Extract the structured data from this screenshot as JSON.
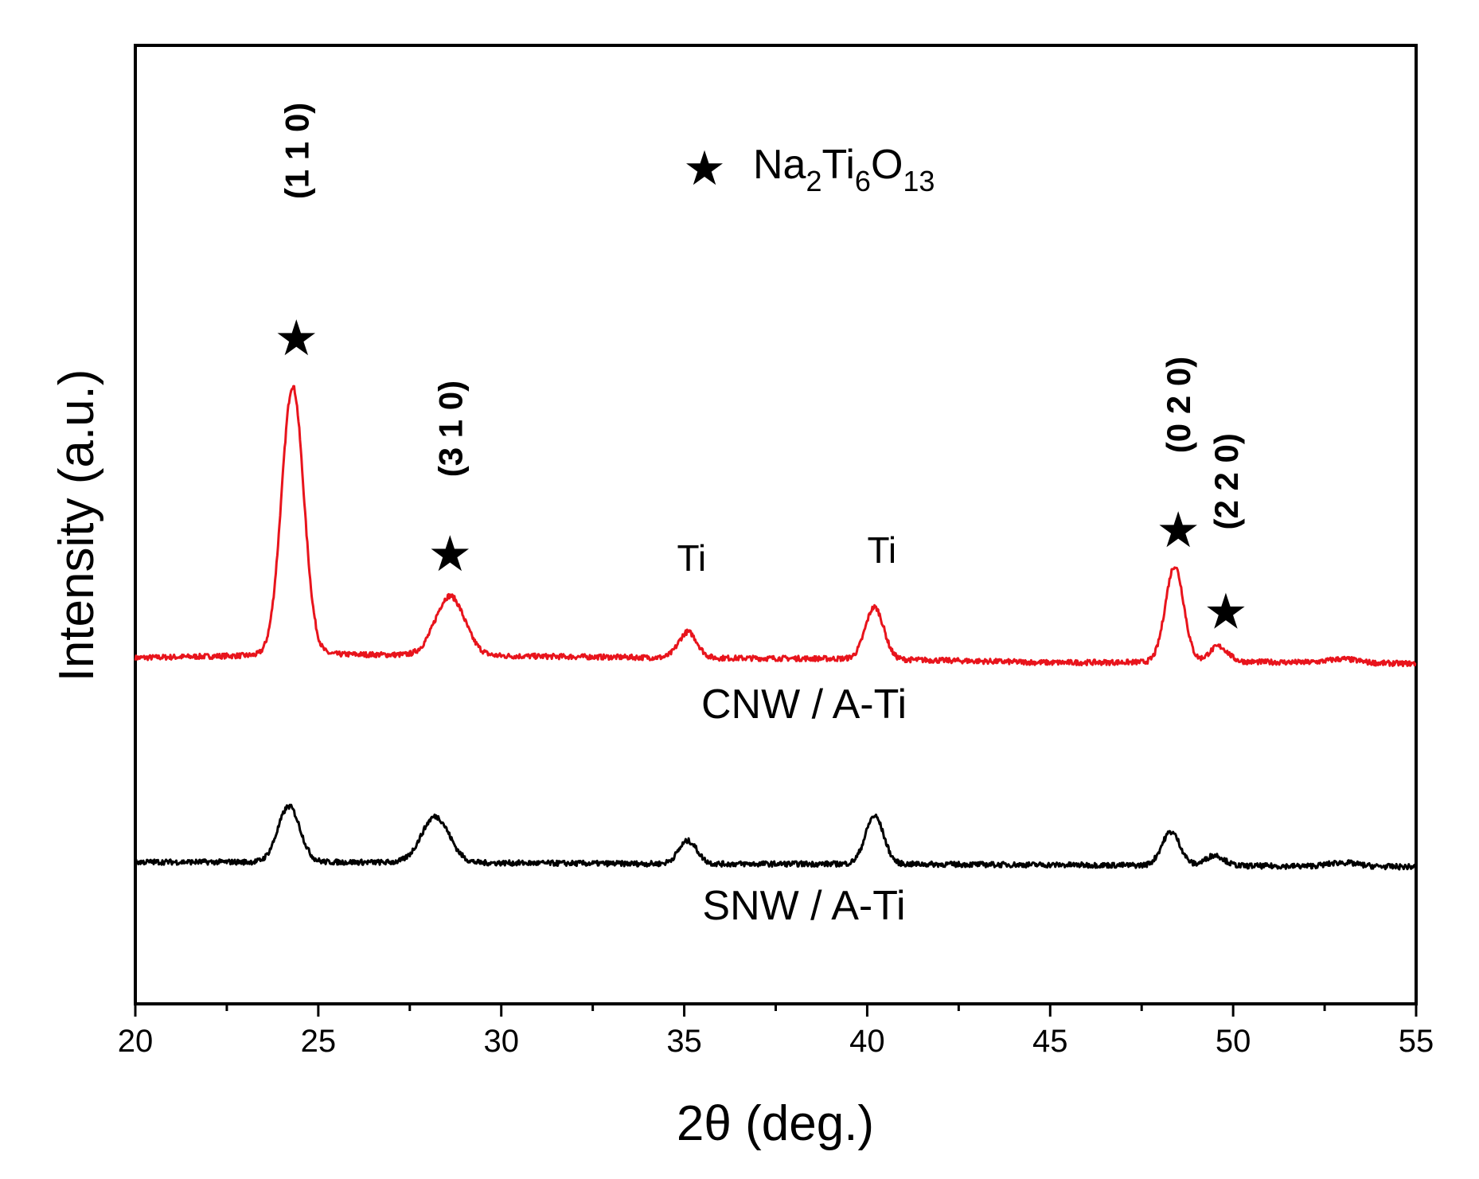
{
  "chart_data": {
    "type": "line",
    "xlabel": "2θ (deg.)",
    "ylabel": "Intensity (a.u.)",
    "xlim": [
      20,
      55
    ],
    "ylim": [
      0,
      10
    ],
    "x_ticks": [
      20,
      25,
      30,
      35,
      40,
      45,
      50,
      55
    ],
    "x_tick_labels": [
      "20",
      "25",
      "30",
      "35",
      "40",
      "45",
      "50",
      "55"
    ],
    "y_ticks_shown": false,
    "legend": {
      "symbol": "★",
      "formula": {
        "na": "Na",
        "na_sub": "2",
        "ti": "Ti",
        "ti_sub": "6",
        "o": "O",
        "o_sub": "13"
      },
      "placement": "top-center"
    },
    "series": [
      {
        "name": "CNW / A-Ti",
        "color": "#e8141c",
        "baseline": [
          [
            20,
            3.61
          ],
          [
            25,
            3.65
          ],
          [
            30,
            3.63
          ],
          [
            35,
            3.61
          ],
          [
            40,
            3.6
          ],
          [
            45,
            3.56
          ],
          [
            50,
            3.57
          ],
          [
            55,
            3.55
          ]
        ],
        "peaks": [
          {
            "x": 24.3,
            "height": 2.8,
            "width": 0.3
          },
          {
            "x": 28.6,
            "height": 0.62,
            "width": 0.4
          },
          {
            "x": 35.1,
            "height": 0.27,
            "width": 0.25
          },
          {
            "x": 40.2,
            "height": 0.54,
            "width": 0.25
          },
          {
            "x": 48.4,
            "height": 1.0,
            "width": 0.25
          },
          {
            "x": 49.6,
            "height": 0.16,
            "width": 0.25
          },
          {
            "x": 53.0,
            "height": 0.04,
            "width": 0.4
          }
        ]
      },
      {
        "name": "SNW / A-Ti",
        "color": "#000000",
        "baseline": [
          [
            20,
            1.48
          ],
          [
            25,
            1.48
          ],
          [
            30,
            1.47
          ],
          [
            35,
            1.46
          ],
          [
            40,
            1.46
          ],
          [
            45,
            1.45
          ],
          [
            50,
            1.44
          ],
          [
            55,
            1.43
          ]
        ],
        "peaks": [
          {
            "x": 24.2,
            "height": 0.58,
            "width": 0.3
          },
          {
            "x": 28.2,
            "height": 0.48,
            "width": 0.38
          },
          {
            "x": 35.1,
            "height": 0.24,
            "width": 0.25
          },
          {
            "x": 40.2,
            "height": 0.5,
            "width": 0.25
          },
          {
            "x": 48.3,
            "height": 0.35,
            "width": 0.25
          },
          {
            "x": 49.5,
            "height": 0.11,
            "width": 0.25
          },
          {
            "x": 53.0,
            "height": 0.04,
            "width": 0.4
          }
        ]
      }
    ],
    "annotations": [
      {
        "kind": "star",
        "x": 24.4,
        "y": 6.95
      },
      {
        "kind": "hkl",
        "text": "(1 1 0)",
        "x": 24.4,
        "y": 8.9
      },
      {
        "kind": "star",
        "x": 28.6,
        "y": 4.7
      },
      {
        "kind": "hkl",
        "text": "(3 1 0)",
        "x": 28.6,
        "y": 6.0
      },
      {
        "kind": "text",
        "text": "Ti",
        "x": 35.2,
        "y": 4.52
      },
      {
        "kind": "text",
        "text": "Ti",
        "x": 40.4,
        "y": 4.6
      },
      {
        "kind": "star",
        "x": 48.5,
        "y": 4.95
      },
      {
        "kind": "hkl",
        "text": "(0 2 0)",
        "x": 48.5,
        "y": 6.25
      },
      {
        "kind": "star",
        "x": 49.8,
        "y": 4.1
      },
      {
        "kind": "hkl",
        "text": "(2 2 0)",
        "x": 49.8,
        "y": 5.45
      }
    ]
  }
}
